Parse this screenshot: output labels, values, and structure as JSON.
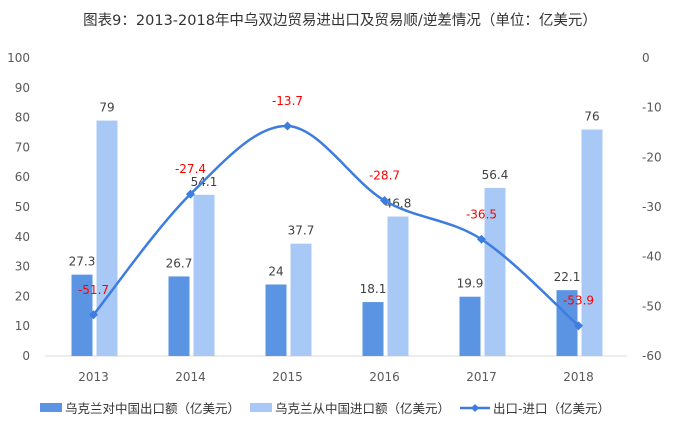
{
  "title": "图表9：2013-2018年中乌双边贸易进出口及贸易顺/逆差情况（单位：亿美元）",
  "chart_data": {
    "type": "bar+line",
    "title": "图表9：2013-2018年中乌双边贸易进出口及贸易顺/逆差情况（单位：亿美元）",
    "categories": [
      "2013",
      "2014",
      "2015",
      "2016",
      "2017",
      "2018"
    ],
    "series": [
      {
        "name": "乌克兰对中国出口额（亿美元）",
        "type": "bar",
        "axis": "left",
        "color": "#5b94e3",
        "values": [
          27.3,
          26.7,
          24,
          18.1,
          19.9,
          22.1
        ]
      },
      {
        "name": "乌克兰从中国进口额（亿美元）",
        "type": "bar",
        "axis": "left",
        "color": "#a8c8f5",
        "values": [
          79,
          54.1,
          37.7,
          46.8,
          56.4,
          76
        ]
      },
      {
        "name": "出口-进口（亿美元）",
        "type": "line",
        "axis": "right",
        "color": "#3d7de0",
        "label_color": "#ff0000",
        "values": [
          -51.7,
          -27.4,
          -13.7,
          -28.7,
          -36.5,
          -53.9
        ]
      }
    ],
    "left_axis": {
      "ylim": [
        0,
        100
      ],
      "ticks": [
        "0",
        "10",
        "20",
        "30",
        "40",
        "50",
        "60",
        "70",
        "80",
        "90",
        "100"
      ]
    },
    "right_axis": {
      "ylim": [
        -60,
        0
      ],
      "ticks": [
        "-60",
        "-50",
        "-40",
        "-30",
        "-20",
        "-10",
        "0"
      ]
    },
    "grid": false,
    "legend": "bottom"
  }
}
